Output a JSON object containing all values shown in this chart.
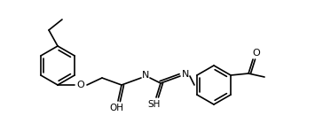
{
  "bg_color": "#ffffff",
  "line_color": "#000000",
  "lw": 1.2,
  "font_size": 7.5,
  "fig_w": 3.55,
  "fig_h": 1.48,
  "dpi": 100,
  "atoms": {
    "OH": "OH",
    "SH": "SH",
    "O_ether": "O",
    "N1": "N",
    "N2": "N",
    "O_carbonyl_right": "O"
  }
}
